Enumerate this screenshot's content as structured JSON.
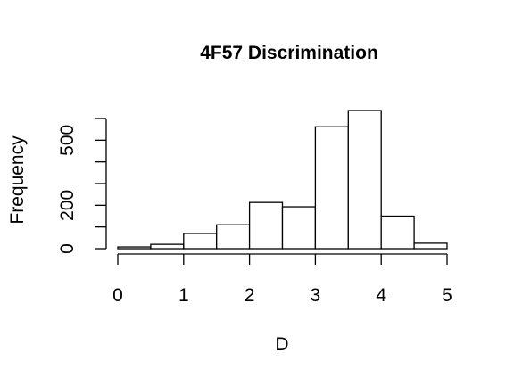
{
  "chart_data": {
    "type": "bar",
    "title": "4F57 Discrimination",
    "xlabel": "D",
    "ylabel": "Frequency",
    "bins": [
      {
        "from": 0.0,
        "to": 0.5,
        "count": 8
      },
      {
        "from": 0.5,
        "to": 1.0,
        "count": 20
      },
      {
        "from": 1.0,
        "to": 1.5,
        "count": 70
      },
      {
        "from": 1.5,
        "to": 2.0,
        "count": 110
      },
      {
        "from": 2.0,
        "to": 2.5,
        "count": 213
      },
      {
        "from": 2.5,
        "to": 3.0,
        "count": 193
      },
      {
        "from": 3.0,
        "to": 3.5,
        "count": 562
      },
      {
        "from": 3.5,
        "to": 4.0,
        "count": 637
      },
      {
        "from": 4.0,
        "to": 4.5,
        "count": 150
      },
      {
        "from": 4.5,
        "to": 5.0,
        "count": 25
      }
    ],
    "xlim": [
      0,
      5
    ],
    "ylim": [
      0,
      640
    ],
    "xticks": [
      0,
      1,
      2,
      3,
      4,
      5
    ],
    "yticks": [
      0,
      100,
      200,
      300,
      400,
      500,
      600
    ],
    "ytick_labels": [
      "0",
      "",
      "200",
      "",
      "",
      "500",
      ""
    ],
    "grid": false,
    "legend": "none",
    "bar_color": "#ffffff",
    "edge_color": "#000000"
  }
}
